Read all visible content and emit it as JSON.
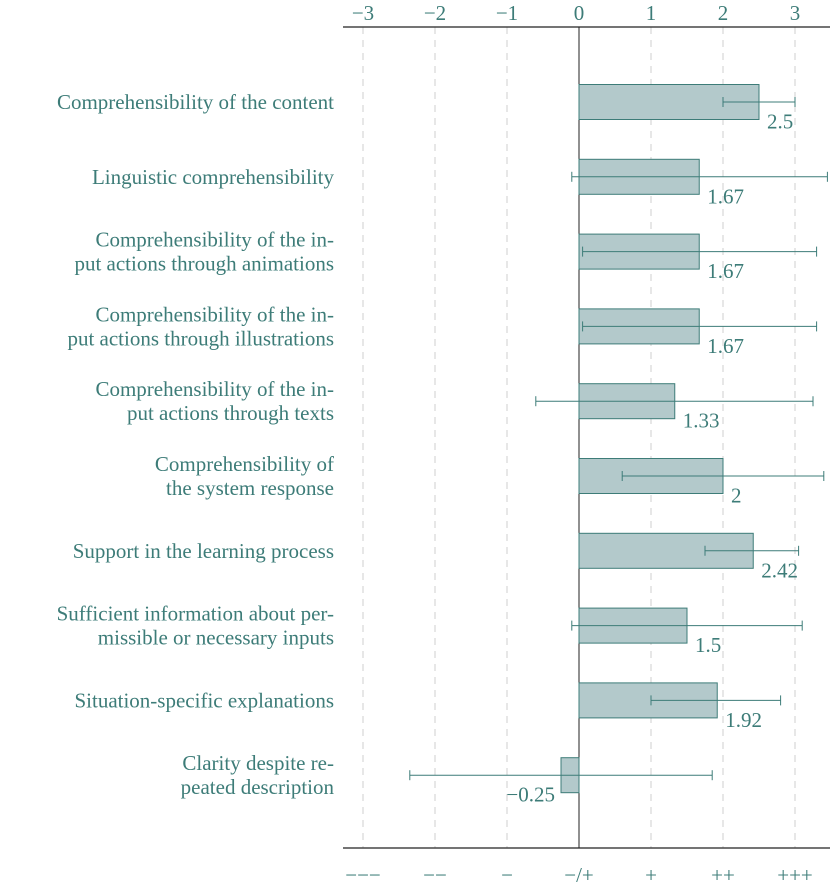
{
  "chart_data": {
    "type": "bar",
    "orientation": "horizontal",
    "categories": [
      [
        "Comprehensibility of the content"
      ],
      [
        "Linguistic comprehensibility"
      ],
      [
        "Comprehensibility of the in-",
        "put actions through animations"
      ],
      [
        "Comprehensibility of the in-",
        "put actions through illustrations"
      ],
      [
        "Comprehensibility of the in-",
        "put actions through texts"
      ],
      [
        "Comprehensibility of",
        "the system response"
      ],
      [
        "Support in the learning process"
      ],
      [
        "Sufficient information about per-",
        "missible or necessary inputs"
      ],
      [
        "Situation-specific explanations"
      ],
      [
        "Clarity despite re-",
        "peated description"
      ]
    ],
    "values": [
      2.5,
      1.67,
      1.67,
      1.67,
      1.33,
      2,
      2.42,
      1.5,
      1.92,
      -0.25
    ],
    "value_labels": [
      "2.5",
      "1.67",
      "1.67",
      "1.67",
      "1.33",
      "2",
      "2.42",
      "1.5",
      "1.92",
      "−0.25"
    ],
    "error_bars": [
      [
        2.0,
        3.0
      ],
      [
        -0.1,
        3.45
      ],
      [
        0.05,
        3.3
      ],
      [
        0.05,
        3.3
      ],
      [
        -0.6,
        3.25
      ],
      [
        0.6,
        3.4
      ],
      [
        1.75,
        3.05
      ],
      [
        -0.1,
        3.1
      ],
      [
        1.0,
        2.8
      ],
      [
        -2.35,
        1.85
      ]
    ],
    "xlim": [
      -3.2,
      3.5
    ],
    "top_ticks": [
      {
        "value": -3,
        "label": "−3"
      },
      {
        "value": -2,
        "label": "−2"
      },
      {
        "value": -1,
        "label": "−1"
      },
      {
        "value": 0,
        "label": "0"
      },
      {
        "value": 1,
        "label": "1"
      },
      {
        "value": 2,
        "label": "2"
      },
      {
        "value": 3,
        "label": "3"
      }
    ],
    "bottom_ticks": [
      {
        "value": -3,
        "label": "−−−"
      },
      {
        "value": -2,
        "label": "−−"
      },
      {
        "value": -1,
        "label": "−"
      },
      {
        "value": 0,
        "label": "−/+"
      },
      {
        "value": 1,
        "label": "+"
      },
      {
        "value": 2,
        "label": "++"
      },
      {
        "value": 3,
        "label": "+++"
      }
    ],
    "grid": "vertical-dashed",
    "colors": {
      "text": "#3d7c78",
      "bar_fill": "#b3c9cb",
      "bar_stroke": "#3d7c78",
      "axis": "#222222",
      "grid": "#cfcfcf"
    }
  }
}
